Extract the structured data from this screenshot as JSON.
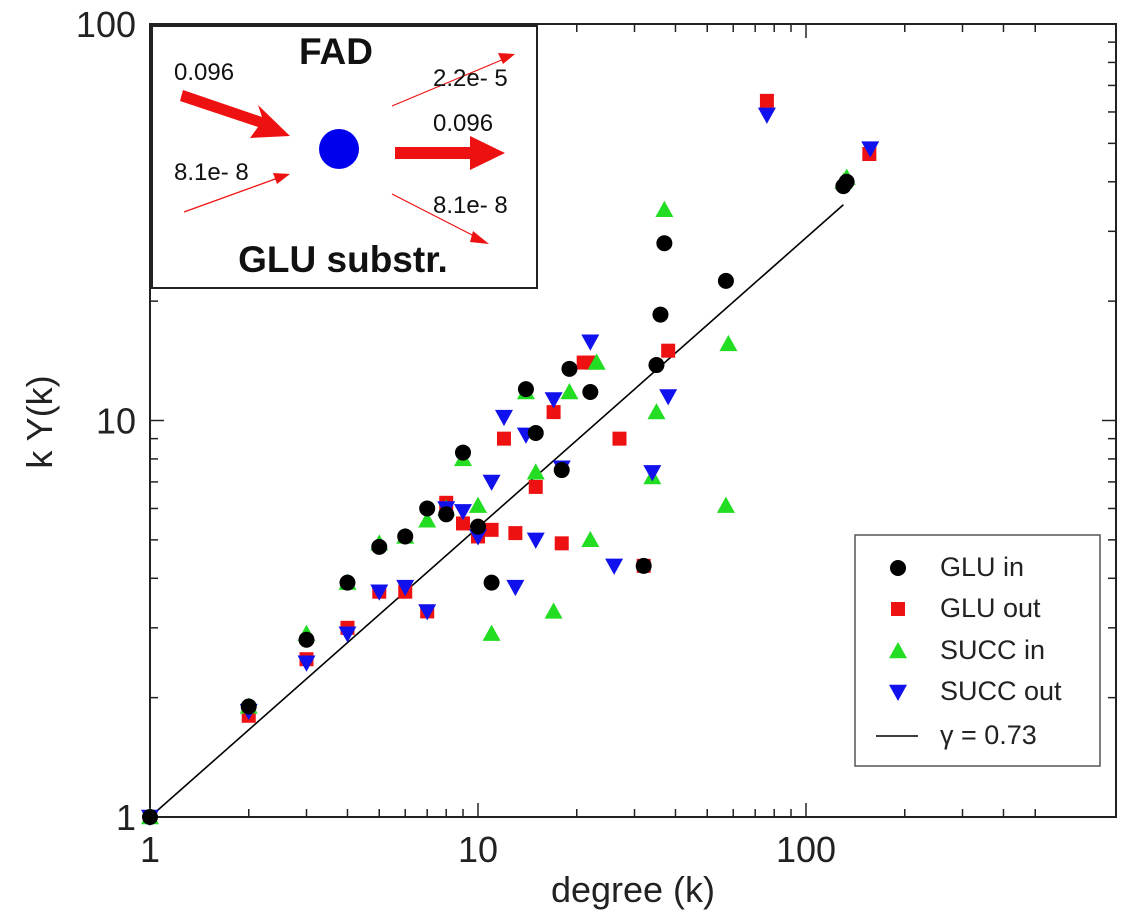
{
  "chart_data": {
    "type": "scatter",
    "xlabel": "degree (k)",
    "ylabel": "k Y(k)",
    "xscale": "log",
    "yscale": "log",
    "xlim": [
      1,
      500
    ],
    "ylim": [
      1,
      100
    ],
    "x_ticks": [
      "1",
      "10",
      "100"
    ],
    "y_ticks": [
      "1",
      "10",
      "100"
    ],
    "grid": false,
    "legend_position": "bottom-right",
    "series": [
      {
        "name": "GLU in",
        "marker": "circle",
        "color": "#000000",
        "x": [
          1,
          2,
          3,
          4,
          5,
          6,
          7,
          8,
          9,
          10,
          11,
          14,
          15,
          18,
          19,
          22,
          32,
          35,
          36,
          37,
          57,
          130,
          133
        ],
        "y": [
          1,
          1.9,
          2.8,
          3.9,
          4.8,
          5.1,
          6.0,
          5.8,
          8.3,
          5.4,
          3.9,
          12.0,
          9.3,
          7.5,
          13.5,
          11.8,
          4.3,
          13.8,
          18.5,
          28.0,
          22.5,
          39.0,
          40.0
        ]
      },
      {
        "name": "GLU out",
        "marker": "square",
        "color": "#ee1111",
        "x": [
          1,
          2,
          3,
          4,
          5,
          6,
          7,
          8,
          9,
          10,
          11,
          12,
          13,
          15,
          17,
          18,
          21,
          22,
          27,
          32,
          38,
          76,
          156
        ],
        "y": [
          1,
          1.8,
          2.5,
          3.0,
          3.7,
          3.7,
          3.3,
          6.2,
          5.5,
          5.1,
          5.3,
          9.0,
          5.2,
          6.8,
          10.5,
          4.9,
          14.0,
          14.0,
          9.0,
          4.3,
          15.0,
          64.0,
          47.0
        ]
      },
      {
        "name": "SUCC in",
        "marker": "triangle-up",
        "color": "#22dd22",
        "x": [
          1,
          2,
          3,
          4,
          5,
          6,
          7,
          8,
          9,
          10,
          11,
          14,
          15,
          17,
          19,
          22,
          23,
          34,
          35,
          37,
          57,
          58,
          130,
          133
        ],
        "y": [
          1,
          1.9,
          2.9,
          3.9,
          4.9,
          5.1,
          5.6,
          6.0,
          8.0,
          6.1,
          2.9,
          11.8,
          7.4,
          3.3,
          11.8,
          5.0,
          14.0,
          7.2,
          10.5,
          34.0,
          6.1,
          15.6,
          40.0,
          41.0
        ]
      },
      {
        "name": "SUCC out",
        "marker": "triangle-down",
        "color": "#1111ee",
        "x": [
          1,
          2,
          3,
          4,
          5,
          6,
          7,
          8,
          9,
          10,
          11,
          12,
          13,
          14,
          15,
          17,
          18,
          22,
          26,
          34,
          38,
          76,
          157
        ],
        "y": [
          1,
          1.85,
          2.45,
          2.9,
          3.7,
          3.8,
          3.3,
          6.0,
          5.9,
          5.1,
          7.0,
          10.2,
          3.8,
          9.2,
          5.0,
          11.3,
          7.6,
          15.8,
          4.3,
          7.4,
          11.5,
          59.0,
          48.5
        ]
      }
    ],
    "fit_line": {
      "name": "γ = 0.73",
      "color": "#000000",
      "x": [
        1,
        130
      ],
      "y": [
        1,
        35.0
      ]
    },
    "inset": {
      "node": "FAD",
      "substrate": "GLU substr.",
      "node_color": "#0000ee",
      "arrow_color": "#ee1111",
      "in_top": "0.096",
      "in_bottom": "8.1e- 8",
      "out_top": "2.2e- 5",
      "out_middle": "0.096",
      "out_bottom": "8.1e- 8"
    }
  }
}
